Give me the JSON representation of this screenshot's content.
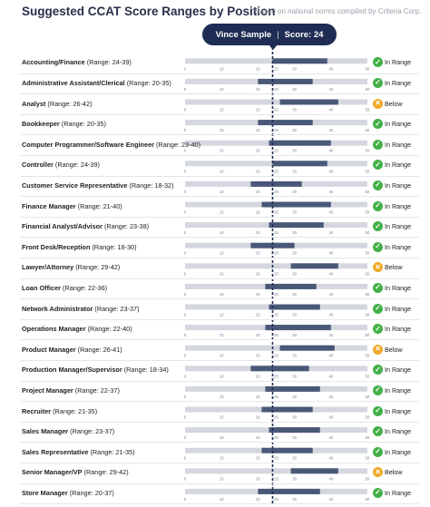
{
  "header": {
    "title": "Suggested CCAT Score Ranges by Position",
    "footnote": "*Based on national norms compiled by Criteria Corp."
  },
  "marker": {
    "name": "Vince Sample",
    "score_label": "Score: 24"
  },
  "colors": {
    "track": "#d4d7de",
    "range_bar": "#4a5878",
    "marker_line": "#1f2d54",
    "in_range": "#43b047",
    "below": "#f0a825"
  },
  "chart_data": {
    "type": "bar",
    "orientation": "horizontal-range",
    "title": "Suggested CCAT Score Ranges by Position",
    "xlim": [
      0,
      50
    ],
    "ticks": [
      0,
      10,
      20,
      25,
      30,
      40,
      50
    ],
    "tick_labels": [
      "0",
      "10",
      "20",
      "25",
      "30",
      "40",
      "50"
    ],
    "marker_value": 24,
    "categories": [
      "Accounting/Finance",
      "Administrative Assistant/Clerical",
      "Analyst",
      "Bookkeeper",
      "Computer Programmer/Software Engineer",
      "Controller",
      "Customer Service Representative",
      "Finance Manager",
      "Financial Analyst/Advisor",
      "Front Desk/Reception",
      "Lawyer/Attorney",
      "Loan Officer",
      "Network Administrator",
      "Operations Manager",
      "Product Manager",
      "Production Manager/Supervisor",
      "Project Manager",
      "Recruiter",
      "Sales Manager",
      "Sales Representative",
      "Senior Manager/VP",
      "Store Manager"
    ],
    "range_labels": [
      "(Range: 24-39)",
      "(Range: 20-35)",
      "(Range: 26-42)",
      "(Range: 20-35)",
      "(Range: 23-40)",
      "(Range: 24-39)",
      "(Range: 18-32)",
      "(Range: 21-40)",
      "(Range: 23-38)",
      "(Range: 18-30)",
      "(Range: 29-42)",
      "(Range: 22-36)",
      "(Range: 23-37)",
      "(Range: 22-40)",
      "(Range: 26-41)",
      "(Range: 18-34)",
      "(Range: 22-37)",
      "(Range: 21-35)",
      "(Range: 23-37)",
      "(Range: 21-35)",
      "(Range: 29-42)",
      "(Range: 20-37)"
    ],
    "ranges": [
      [
        24,
        39
      ],
      [
        20,
        35
      ],
      [
        26,
        42
      ],
      [
        20,
        35
      ],
      [
        23,
        40
      ],
      [
        24,
        39
      ],
      [
        18,
        32
      ],
      [
        21,
        40
      ],
      [
        23,
        38
      ],
      [
        18,
        30
      ],
      [
        29,
        42
      ],
      [
        22,
        36
      ],
      [
        23,
        37
      ],
      [
        22,
        40
      ],
      [
        26,
        41
      ],
      [
        18,
        34
      ],
      [
        22,
        37
      ],
      [
        21,
        35
      ],
      [
        23,
        37
      ],
      [
        21,
        35
      ],
      [
        29,
        42
      ],
      [
        20,
        37
      ]
    ],
    "status": [
      "In Range",
      "In Range",
      "Below",
      "In Range",
      "In Range",
      "In Range",
      "In Range",
      "In Range",
      "In Range",
      "In Range",
      "Below",
      "In Range",
      "In Range",
      "In Range",
      "Below",
      "In Range",
      "In Range",
      "In Range",
      "In Range",
      "In Range",
      "Below",
      "In Range"
    ]
  }
}
